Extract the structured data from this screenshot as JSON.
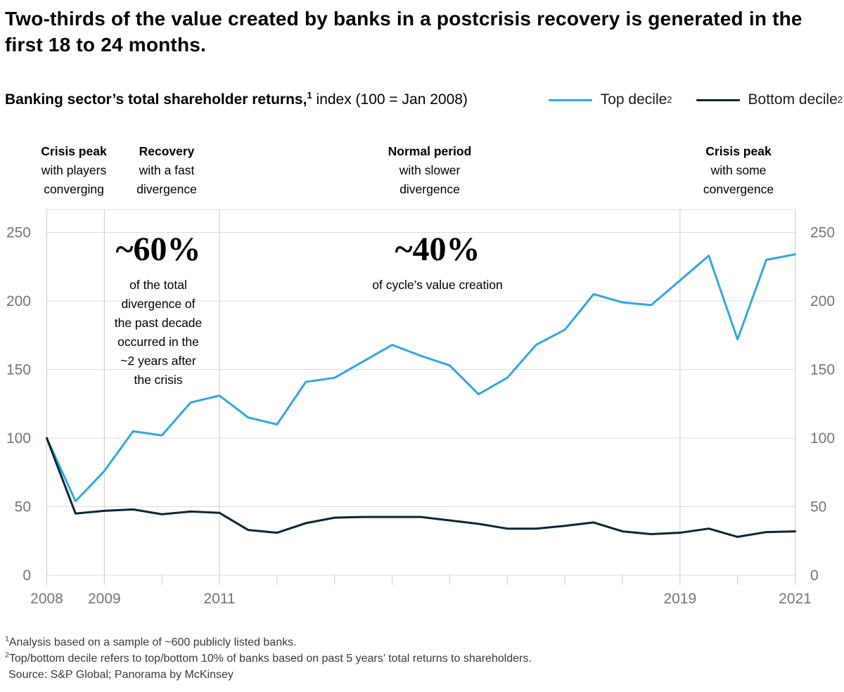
{
  "title": "Two-thirds of the value created by banks in a postcrisis recovery is generated in the first 18 to 24 months.",
  "subtitle": {
    "bold": "Banking sector’s total shareholder returns,",
    "sup": "1",
    "rest": " index (100 = Jan 2008)"
  },
  "legend": {
    "items": [
      {
        "label": "Top decile",
        "sup": "2"
      },
      {
        "label": "Bottom decile",
        "sup": "2"
      }
    ]
  },
  "phases": [
    {
      "title": "Crisis peak",
      "body": "with players\nconverging"
    },
    {
      "title": "Recovery",
      "body": "with a fast\ndivergence"
    },
    {
      "title": "Normal period",
      "body": "with slower\ndivergence"
    },
    {
      "title": "Crisis peak",
      "body": "with some\nconvergence"
    }
  ],
  "annotations": [
    {
      "big": "~60%",
      "text": "of the total\ndivergence of\nthe past decade\noccurred in the\n~2 years after\nthe crisis"
    },
    {
      "big": "~40%",
      "text": "of cycle’s value creation"
    }
  ],
  "footnotes": [
    {
      "sup": "1",
      "text": "Analysis based on a sample of ~600 publicly listed banks."
    },
    {
      "sup": "2",
      "text": "Top/bottom decile refers to top/bottom 10% of banks based on past 5 years’ total returns to shareholders."
    },
    {
      "sup": "",
      "text": "Source: S&P Global; Panorama by McKinsey"
    }
  ],
  "chart_data": {
    "type": "line",
    "title": "Banking sector’s total shareholder returns, index (100 = Jan 2008)",
    "xlabel": "",
    "ylabel": "",
    "xlim": [
      2008,
      2021
    ],
    "ylim": [
      0,
      250
    ],
    "yticks": [
      0,
      50,
      100,
      150,
      200,
      250
    ],
    "x_gridline_years": [
      2008,
      2009,
      2011,
      2019,
      2021
    ],
    "x_labels": [
      "2008",
      "2009",
      "2011",
      "2019",
      "2021"
    ],
    "grid": true,
    "legend_position": "top-right",
    "x": [
      2008,
      2008.5,
      2009,
      2009.5,
      2010,
      2010.5,
      2011,
      2011.5,
      2012,
      2012.5,
      2013,
      2013.5,
      2014,
      2014.5,
      2015,
      2015.5,
      2016,
      2016.5,
      2017,
      2017.5,
      2018,
      2018.5,
      2019,
      2019.5,
      2020,
      2020.5,
      2021
    ],
    "series": [
      {
        "name": "Top decile",
        "color": "#2FA8E3",
        "values": [
          100,
          54,
          76,
          105,
          102,
          126,
          131,
          115,
          110,
          141,
          144,
          156,
          168,
          160,
          153,
          132,
          144,
          168,
          179,
          205,
          199,
          197,
          215,
          233,
          172,
          230,
          234
        ]
      },
      {
        "name": "Bottom decile",
        "color": "#0A2538",
        "values": [
          100,
          45,
          47,
          48,
          44.5,
          46.5,
          45.5,
          33,
          31,
          38,
          42,
          42.5,
          42.5,
          42.5,
          40,
          37.5,
          34,
          34,
          36,
          38.5,
          32,
          30,
          31,
          34,
          28,
          31.5,
          32
        ]
      }
    ],
    "axis_colors": {
      "grid_h": "#dcdcdc",
      "grid_v": "#c9c9c9",
      "tick": "#c9c9c9",
      "axis_text": "#757575"
    }
  }
}
